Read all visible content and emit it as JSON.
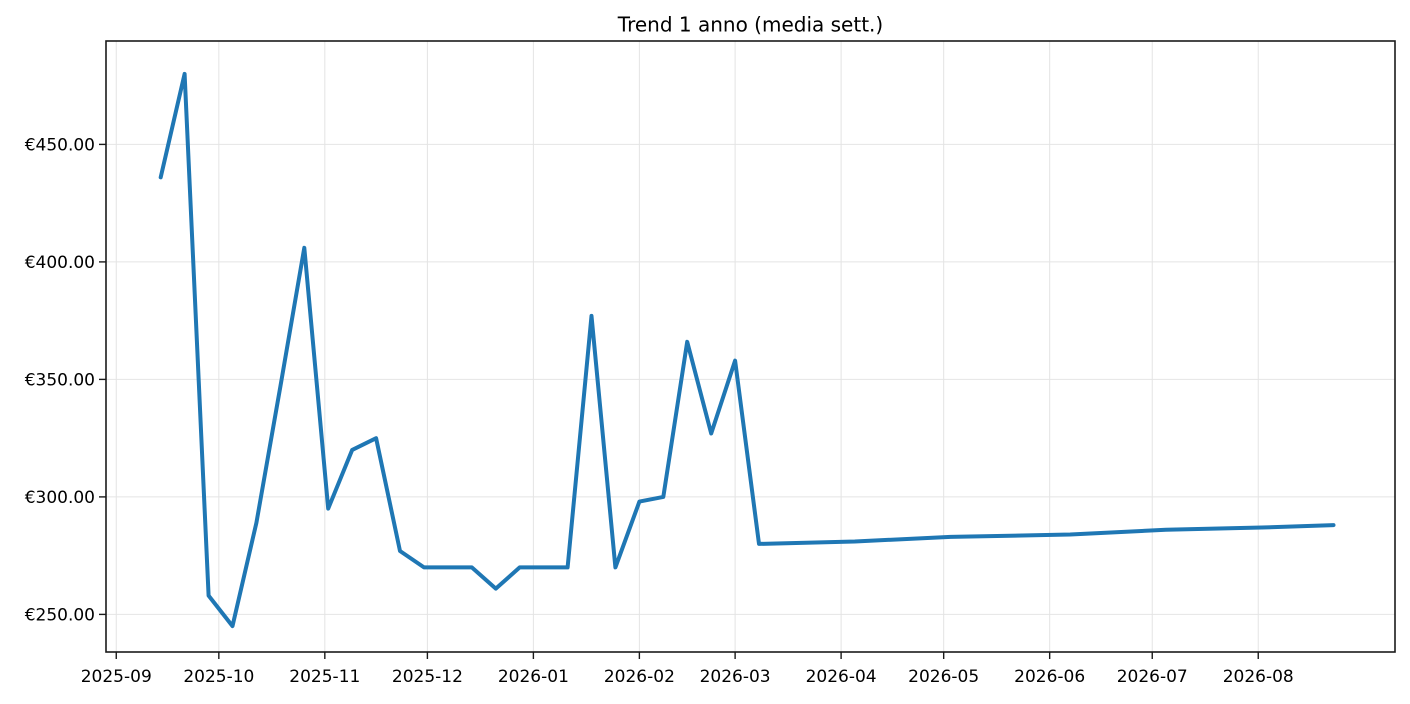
{
  "figure": {
    "background": "#ffffff"
  },
  "chart_data": {
    "type": "line",
    "title": "Trend 1 anno (media sett.)",
    "xlabel": "",
    "ylabel": "",
    "grid": true,
    "legend": "none",
    "currency": "EUR",
    "line_color": "#1f77b4",
    "line_width": 4,
    "grid_color": "#e4e4e4",
    "axis_color": "#1a1a1a",
    "xlim": [
      "2025-08-29",
      "2026-09-10"
    ],
    "ylim": [
      234,
      494
    ],
    "x_ticks": [
      {
        "date": "2025-09-01",
        "label": "2025-09"
      },
      {
        "date": "2025-10-01",
        "label": "2025-10"
      },
      {
        "date": "2025-11-01",
        "label": "2025-11"
      },
      {
        "date": "2025-12-01",
        "label": "2025-12"
      },
      {
        "date": "2026-01-01",
        "label": "2026-01"
      },
      {
        "date": "2026-02-01",
        "label": "2026-02"
      },
      {
        "date": "2026-03-01",
        "label": "2026-03"
      },
      {
        "date": "2026-04-01",
        "label": "2026-04"
      },
      {
        "date": "2026-05-01",
        "label": "2026-05"
      },
      {
        "date": "2026-06-01",
        "label": "2026-06"
      },
      {
        "date": "2026-07-01",
        "label": "2026-07"
      },
      {
        "date": "2026-08-01",
        "label": "2026-08"
      }
    ],
    "y_ticks": [
      {
        "value": 250,
        "label": "€250.00"
      },
      {
        "value": 300,
        "label": "€300.00"
      },
      {
        "value": 350,
        "label": "€350.00"
      },
      {
        "value": 400,
        "label": "€400.00"
      },
      {
        "value": 450,
        "label": "€450.00"
      }
    ],
    "series": [
      {
        "name": "media sett.",
        "points": [
          {
            "date": "2025-09-14",
            "value": 436
          },
          {
            "date": "2025-09-21",
            "value": 480
          },
          {
            "date": "2025-09-28",
            "value": 258
          },
          {
            "date": "2025-10-05",
            "value": 245
          },
          {
            "date": "2025-10-12",
            "value": 289
          },
          {
            "date": "2025-10-19",
            "value": 347
          },
          {
            "date": "2025-10-26",
            "value": 406
          },
          {
            "date": "2025-11-02",
            "value": 295
          },
          {
            "date": "2025-11-09",
            "value": 320
          },
          {
            "date": "2025-11-16",
            "value": 325
          },
          {
            "date": "2025-11-23",
            "value": 277
          },
          {
            "date": "2025-11-30",
            "value": 270
          },
          {
            "date": "2025-12-07",
            "value": 270
          },
          {
            "date": "2025-12-14",
            "value": 270
          },
          {
            "date": "2025-12-21",
            "value": 261
          },
          {
            "date": "2025-12-28",
            "value": 270
          },
          {
            "date": "2026-01-04",
            "value": 270
          },
          {
            "date": "2026-01-11",
            "value": 270
          },
          {
            "date": "2026-01-18",
            "value": 377
          },
          {
            "date": "2026-01-25",
            "value": 270
          },
          {
            "date": "2026-02-01",
            "value": 298
          },
          {
            "date": "2026-02-08",
            "value": 300
          },
          {
            "date": "2026-02-15",
            "value": 366
          },
          {
            "date": "2026-02-22",
            "value": 327
          },
          {
            "date": "2026-03-01",
            "value": 358
          },
          {
            "date": "2026-03-08",
            "value": 280
          },
          {
            "date": "2026-04-05",
            "value": 281
          },
          {
            "date": "2026-05-03",
            "value": 283
          },
          {
            "date": "2026-06-07",
            "value": 284
          },
          {
            "date": "2026-07-05",
            "value": 286
          },
          {
            "date": "2026-08-02",
            "value": 287
          },
          {
            "date": "2026-08-23",
            "value": 288
          }
        ]
      }
    ]
  }
}
